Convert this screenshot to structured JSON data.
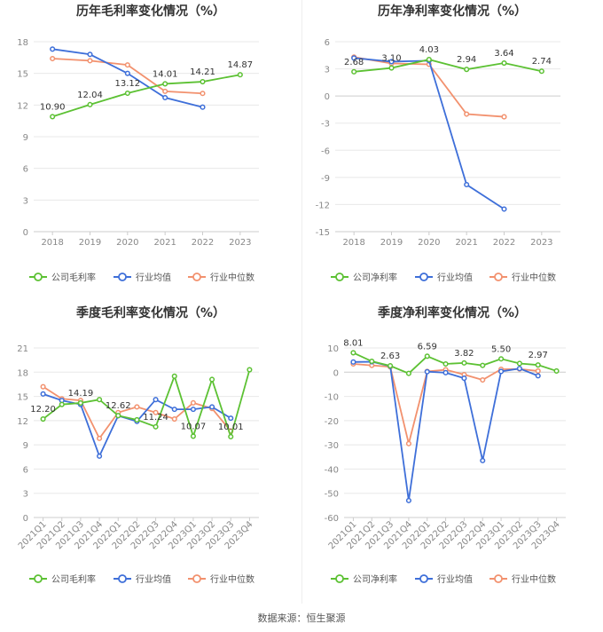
{
  "source": "数据来源：恒生聚源",
  "colors": {
    "company": "#5cc133",
    "avg": "#3e6fd9",
    "median": "#f2916e"
  },
  "chart_data": [
    {
      "type": "line",
      "title": "历年毛利率变化情况（%）",
      "categories": [
        "2018",
        "2019",
        "2020",
        "2021",
        "2022",
        "2023"
      ],
      "ylim": [
        0,
        18
      ],
      "yticks": [
        0,
        3,
        6,
        9,
        12,
        15,
        18
      ],
      "grid": true,
      "legend_position": "bottom",
      "series": [
        {
          "name": "公司毛利率",
          "color_key": "company",
          "values": [
            10.9,
            12.04,
            13.12,
            14.01,
            14.21,
            14.87
          ],
          "labels": [
            "10.90",
            "12.04",
            "13.12",
            "14.01",
            "14.21",
            "14.87"
          ]
        },
        {
          "name": "行业均值",
          "color_key": "avg",
          "values": [
            17.3,
            16.8,
            15.0,
            12.7,
            11.8,
            null
          ]
        },
        {
          "name": "行业中位数",
          "color_key": "median",
          "values": [
            16.4,
            16.2,
            15.8,
            13.3,
            13.1,
            null
          ]
        }
      ]
    },
    {
      "type": "line",
      "title": "历年净利率变化情况（%）",
      "categories": [
        "2018",
        "2019",
        "2020",
        "2021",
        "2022",
        "2023"
      ],
      "ylim": [
        -15,
        6
      ],
      "yticks": [
        -15,
        -12,
        -9,
        -6,
        -3,
        0,
        3,
        6
      ],
      "grid": true,
      "legend_position": "bottom",
      "series": [
        {
          "name": "公司净利率",
          "color_key": "company",
          "values": [
            2.68,
            3.1,
            4.03,
            2.94,
            3.64,
            2.74
          ],
          "labels": [
            "2.68",
            "3.10",
            "4.03",
            "2.94",
            "3.64",
            "2.74"
          ]
        },
        {
          "name": "行业均值",
          "color_key": "avg",
          "values": [
            4.2,
            3.8,
            3.9,
            -9.8,
            -12.5,
            null
          ]
        },
        {
          "name": "行业中位数",
          "color_key": "median",
          "values": [
            4.3,
            3.6,
            3.5,
            -2.0,
            -2.3,
            null
          ]
        }
      ]
    },
    {
      "type": "line",
      "title": "季度毛利率变化情况（%）",
      "categories": [
        "2021Q1",
        "2021Q2",
        "2021Q3",
        "2021Q4",
        "2022Q1",
        "2022Q2",
        "2022Q3",
        "2022Q4",
        "2023Q1",
        "2023Q2",
        "2023Q3",
        "2023Q4"
      ],
      "ylim": [
        0,
        21
      ],
      "yticks": [
        0,
        3,
        6,
        9,
        12,
        15,
        18,
        21
      ],
      "grid": true,
      "legend_position": "bottom",
      "series": [
        {
          "name": "公司毛利率",
          "color_key": "company",
          "values": [
            12.2,
            14.0,
            14.19,
            14.6,
            12.62,
            12.1,
            11.24,
            17.5,
            10.07,
            17.1,
            10.01,
            18.3
          ],
          "labels": [
            "12.20",
            "",
            "14.19",
            "",
            "12.62",
            "",
            "11.24",
            "",
            "10.07",
            "",
            "10.01",
            ""
          ]
        },
        {
          "name": "行业均值",
          "color_key": "avg",
          "values": [
            15.3,
            14.5,
            14.0,
            7.6,
            12.6,
            11.9,
            14.6,
            13.4,
            13.4,
            13.7,
            12.3,
            null
          ]
        },
        {
          "name": "行业中位数",
          "color_key": "median",
          "values": [
            16.2,
            14.7,
            14.5,
            9.8,
            13.0,
            13.7,
            13.0,
            12.2,
            14.2,
            13.5,
            10.7,
            null
          ]
        }
      ]
    },
    {
      "type": "line",
      "title": "季度净利率变化情况（%）",
      "categories": [
        "2021Q1",
        "2021Q2",
        "2021Q3",
        "2021Q4",
        "2022Q1",
        "2022Q2",
        "2022Q3",
        "2022Q4",
        "2023Q1",
        "2023Q2",
        "2023Q3",
        "2023Q4"
      ],
      "ylim": [
        -60,
        10
      ],
      "yticks": [
        -60,
        -50,
        -40,
        -30,
        -20,
        -10,
        0,
        10
      ],
      "grid": true,
      "legend_position": "bottom",
      "series": [
        {
          "name": "公司净利率",
          "color_key": "company",
          "values": [
            8.01,
            4.5,
            2.63,
            -0.5,
            6.59,
            3.4,
            3.82,
            2.8,
            5.5,
            3.6,
            2.97,
            0.5
          ],
          "labels": [
            "8.01",
            "",
            "2.63",
            "",
            "6.59",
            "",
            "3.82",
            "",
            "5.50",
            "",
            "2.97",
            ""
          ]
        },
        {
          "name": "行业均值",
          "color_key": "avg",
          "values": [
            4.2,
            4.3,
            2.5,
            -53.0,
            0.2,
            -0.2,
            -2.5,
            -36.5,
            0.3,
            1.5,
            -1.5,
            null
          ]
        },
        {
          "name": "行业中位数",
          "color_key": "median",
          "values": [
            3.4,
            2.8,
            2.2,
            -29.5,
            0.3,
            1.0,
            -1.0,
            -3.2,
            1.2,
            1.3,
            0.5,
            null
          ]
        }
      ]
    }
  ]
}
